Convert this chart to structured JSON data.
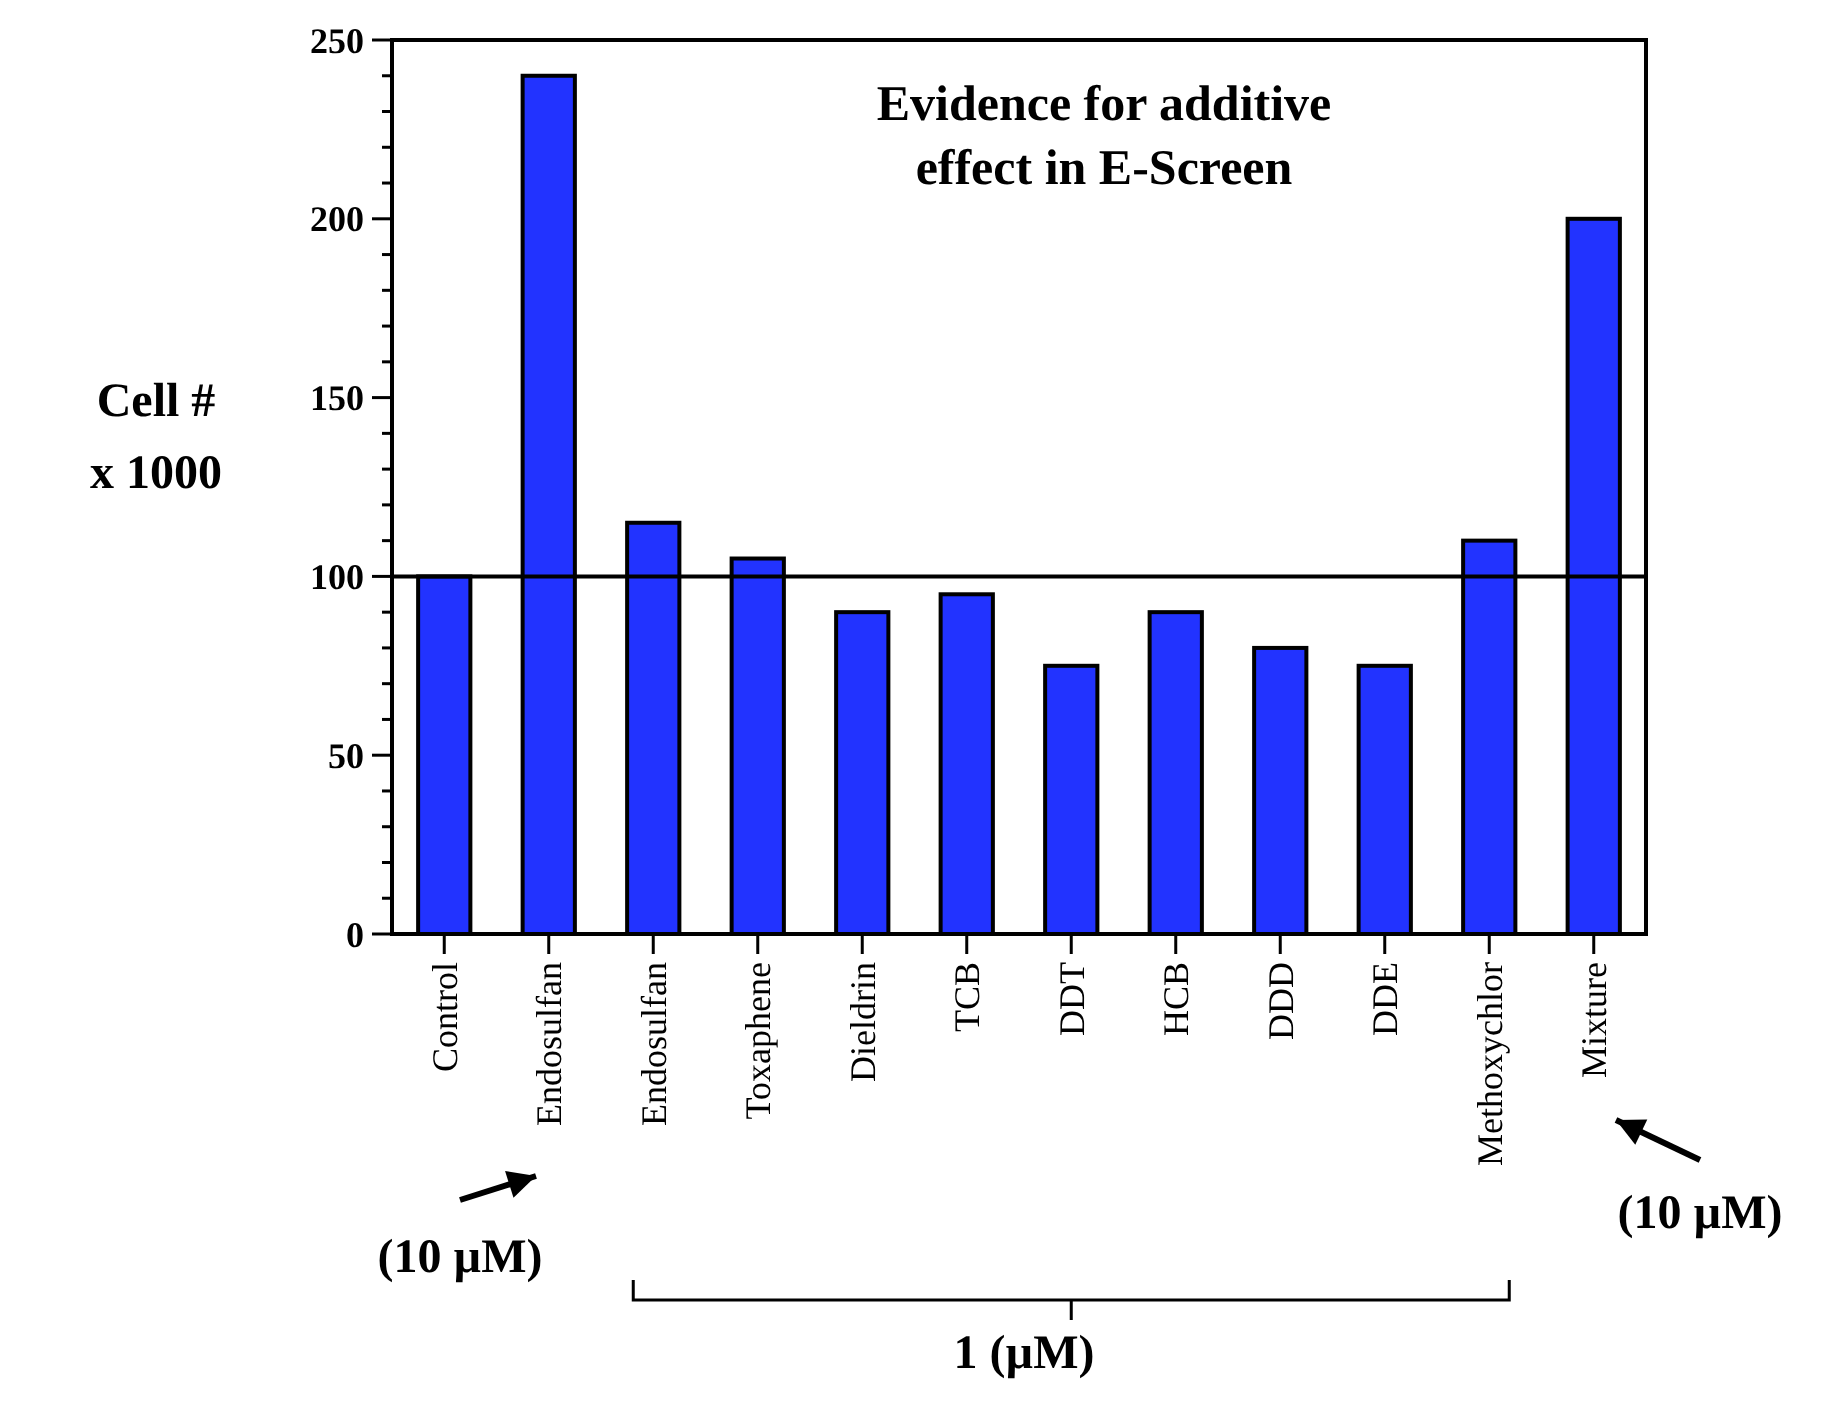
{
  "chart_data": {
    "type": "bar",
    "title": "Evidence for additive effect in E-Screen",
    "ylabel": "Cell #\nx 1000",
    "categories": [
      "Control",
      "Endosulfan",
      "Endosulfan",
      "Toxaphene",
      "Dieldrin",
      "TCB",
      "DDT",
      "HCB",
      "DDD",
      "DDE",
      "Methoxychlor",
      "Mixture"
    ],
    "values": [
      100,
      240,
      115,
      105,
      90,
      95,
      75,
      90,
      80,
      75,
      110,
      200
    ],
    "color": "#2233ff",
    "ylim": [
      0,
      250
    ],
    "yticks": [
      0,
      {
        "value": 10,
        "label": null
      },
      {
        "value": 20,
        "label": null
      },
      {
        "value": 30,
        "label": null
      },
      {
        "value": 40,
        "label": null
      },
      50,
      {
        "value": 60,
        "label": null
      },
      {
        "value": 70,
        "label": null
      },
      {
        "value": 80,
        "label": null
      },
      {
        "value": 90,
        "label": null
      },
      100,
      {
        "value": 110,
        "label": null
      },
      {
        "value": 120,
        "label": null
      },
      {
        "value": 130,
        "label": null
      },
      {
        "value": 140,
        "label": null
      },
      150,
      {
        "value": 160,
        "label": null
      },
      {
        "value": 170,
        "label": null
      },
      {
        "value": 180,
        "label": null
      },
      {
        "value": 190,
        "label": null
      },
      200,
      {
        "value": 210,
        "label": null
      },
      {
        "value": 220,
        "label": null
      },
      {
        "value": 230,
        "label": null
      },
      {
        "value": 240,
        "label": null
      },
      250
    ],
    "ref_lines": [
      {
        "axis": "y",
        "value": 100,
        "color": "#000000"
      }
    ],
    "annotations": [
      "(10 µM)",
      "(10 µM)",
      "1 (µM)"
    ],
    "grid": false
  }
}
